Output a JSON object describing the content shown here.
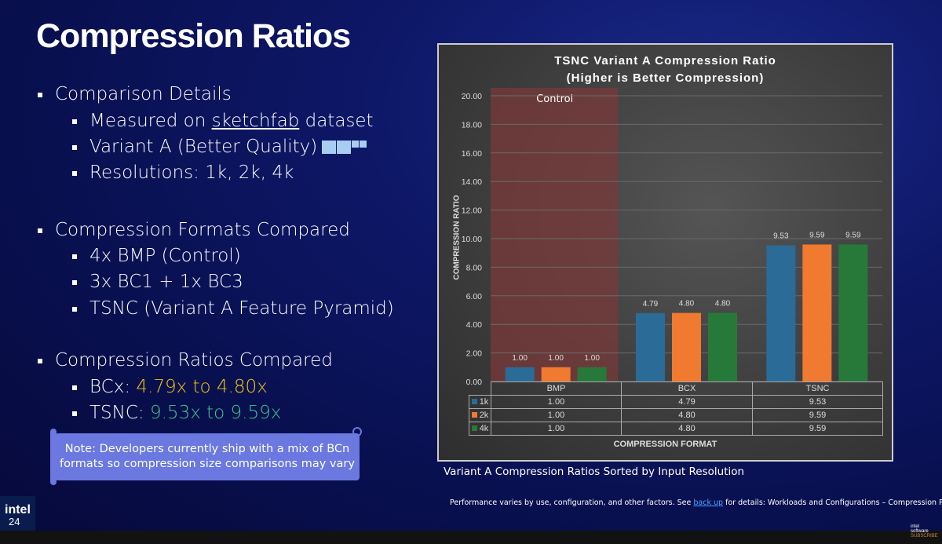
{
  "slide": {
    "title": "Compression Ratios",
    "sections": [
      {
        "heading": "Comparison Details",
        "items": [
          {
            "pre": "Measured on ",
            "link": "sketchfab",
            "post": " dataset"
          },
          {
            "pre": "Variant A (Better Quality)",
            "icon": "quality-pyramid-icon"
          },
          {
            "pre": " Resolutions: 1k, 2k, 4k"
          }
        ]
      },
      {
        "heading": "Compression Formats Compared",
        "items": [
          "4x BMP (Control)",
          "3x BC1 + 1x BC3",
          "TSNC (Variant A Feature Pyramid)"
        ]
      },
      {
        "heading": "Compression Ratios Compared",
        "items": [
          {
            "label": "BCx: ",
            "value": "4.79x to 4.80x",
            "color": "#f5c518"
          },
          {
            "label": "TSNC: ",
            "value": "9.53x to 9.59x",
            "color": "#3ec787"
          }
        ]
      }
    ],
    "note": "Note: Developers currently ship with a mix of BCn formats so compression size comparisons may vary",
    "caption": "Variant A Compression Ratios Sorted by Input Resolution",
    "footer": {
      "pre": "Performance varies by use, configuration, and other factors. See ",
      "link": "back up",
      "post": " for details: Workloads and Configurations – Compression Ratios"
    },
    "logo": {
      "brand": "intel",
      "year": "24"
    },
    "watermark": "intel software SUBSCRIBE"
  },
  "chart_data": {
    "type": "bar",
    "title": "TSNC Variant A Compression Ratio",
    "subtitle": "(Higher is Better Compression)",
    "xlabel": "COMPRESSION FORMAT",
    "ylabel": "COMPRESSION RATIO",
    "ylim": [
      0,
      20
    ],
    "yticks": [
      "0.00",
      "2.00",
      "4.00",
      "6.00",
      "8.00",
      "10.00",
      "12.00",
      "14.00",
      "16.00",
      "18.00",
      "20.00"
    ],
    "grid": true,
    "categories": [
      "BMP",
      "BCX",
      "TSNC"
    ],
    "series": [
      {
        "name": "1k",
        "values": [
          1.0,
          4.79,
          9.53
        ],
        "labels": [
          "1.00",
          "4.79",
          "9.53"
        ],
        "color": "#2b6b97"
      },
      {
        "name": "2k",
        "values": [
          1.0,
          4.8,
          9.59
        ],
        "labels": [
          "1.00",
          "4.80",
          "9.59"
        ],
        "color": "#f07a30"
      },
      {
        "name": "4k",
        "values": [
          1.0,
          4.8,
          9.59
        ],
        "labels": [
          "1.00",
          "4.80",
          "9.59"
        ],
        "color": "#27793a"
      }
    ],
    "annotation": {
      "label": "Control",
      "category": "BMP",
      "color": "#7a3a3a"
    },
    "legend": "data-table"
  }
}
